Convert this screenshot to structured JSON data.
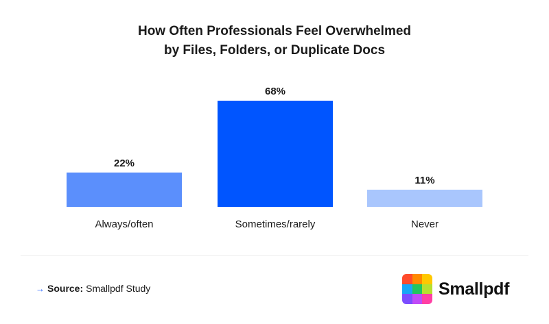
{
  "chart_data": {
    "type": "bar",
    "title_lines": [
      "How Often Professionals Feel Overwhelmed",
      "by Files, Folders, or Duplicate Docs"
    ],
    "categories": [
      "Always/often",
      "Sometimes/rarely",
      "Never"
    ],
    "values": [
      22,
      68,
      11
    ],
    "value_labels": [
      "22%",
      "68%",
      "11%"
    ],
    "colors": [
      "#5b8ffc",
      "#0055ff",
      "#a9c6fd"
    ],
    "ylim": [
      0,
      68
    ],
    "xlabel": "",
    "ylabel": "",
    "grid": false,
    "legend": "none"
  },
  "footer": {
    "source_label": "Source:",
    "source_text": "Smallpdf Study",
    "arrow_icon": "→"
  },
  "brand": {
    "name": "Smallpdf",
    "logo_colors": [
      "#ff4b2b",
      "#ff8a00",
      "#ffc800",
      "#18a7f5",
      "#22c55e",
      "#b6e02f",
      "#7c4dff",
      "#c04bf7",
      "#ff3fa4"
    ]
  }
}
